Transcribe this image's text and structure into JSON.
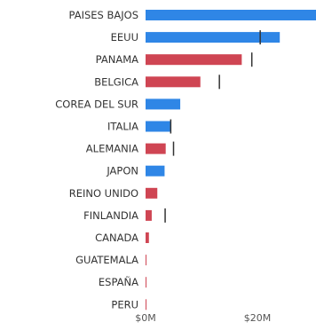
{
  "chart_data": {
    "type": "bar",
    "orientation": "horizontal",
    "categories": [
      "PAISES BAJOS",
      "EEUU",
      "PANAMA",
      "BELGICA",
      "COREA DEL SUR",
      "ITALIA",
      "ALEMANIA",
      "JAPON",
      "REINO UNIDO",
      "FINLANDIA",
      "CANADA",
      "GUATEMALA",
      "ESPAÑA",
      "PERU"
    ],
    "values": [
      30.5,
      24.0,
      17.2,
      9.8,
      6.2,
      4.6,
      3.6,
      3.4,
      2.1,
      1.1,
      0.6,
      0.15,
      0.05,
      0.02
    ],
    "targets": [
      null,
      20.5,
      19.0,
      13.2,
      null,
      4.5,
      5.0,
      null,
      null,
      3.5,
      null,
      null,
      null,
      null
    ],
    "bar_colors": [
      "#2f86e6",
      "#2f86e6",
      "#cf4553",
      "#cf4553",
      "#2f86e6",
      "#2f86e6",
      "#cf4553",
      "#2f86e6",
      "#cf4553",
      "#cf4553",
      "#cf4553",
      "#cf4553",
      "#cf4553",
      "#cf4553"
    ],
    "x_ticks": [
      {
        "value": 0,
        "label": "$0M"
      },
      {
        "value": 20,
        "label": "$20M"
      }
    ],
    "xlim": [
      0,
      30
    ],
    "grid": false,
    "legend": "none"
  }
}
